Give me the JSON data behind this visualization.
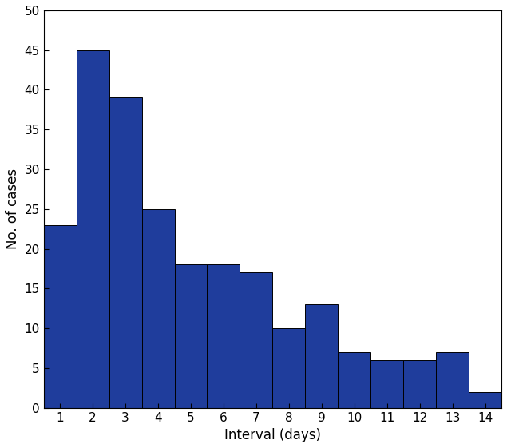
{
  "categories": [
    1,
    2,
    3,
    4,
    5,
    6,
    7,
    8,
    9,
    10,
    11,
    12,
    13,
    14
  ],
  "values": [
    23,
    45,
    39,
    25,
    18,
    18,
    17,
    10,
    13,
    7,
    6,
    6,
    7,
    2
  ],
  "bar_color": "#1f3d9c",
  "bar_edge_color": "#000000",
  "bar_edge_width": 0.7,
  "xlabel": "Interval (days)",
  "ylabel": "No. of cases",
  "ylim": [
    0,
    50
  ],
  "yticks": [
    0,
    5,
    10,
    15,
    20,
    25,
    30,
    35,
    40,
    45,
    50
  ],
  "xticks": [
    1,
    2,
    3,
    4,
    5,
    6,
    7,
    8,
    9,
    10,
    11,
    12,
    13,
    14
  ],
  "background_color": "#ffffff",
  "xlabel_fontsize": 12,
  "ylabel_fontsize": 12,
  "tick_fontsize": 11
}
